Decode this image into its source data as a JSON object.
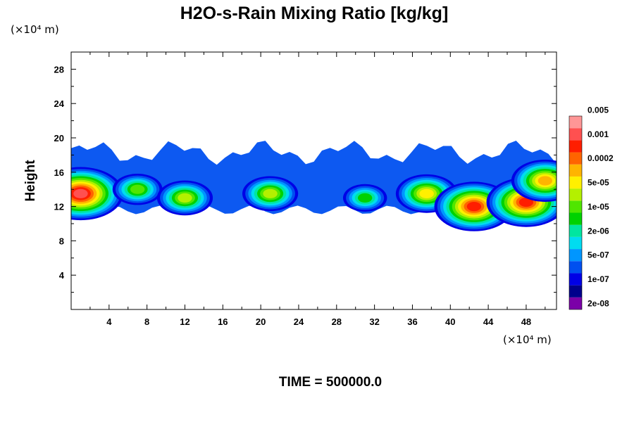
{
  "chart_data": {
    "type": "heatmap",
    "title": "H2O-s-Rain Mixing Ratio [kg/kg]",
    "xlabel": "",
    "ylabel": "Height",
    "x_unit_label": "(×10⁴ m)",
    "y_unit_label": "(×10⁴ m)",
    "xlim": [
      0,
      51.2
    ],
    "ylim": [
      0,
      30
    ],
    "x_ticks": [
      4,
      8,
      12,
      16,
      20,
      24,
      28,
      32,
      36,
      40,
      44,
      48
    ],
    "y_ticks": [
      4,
      8,
      12,
      16,
      20,
      24,
      28
    ],
    "colorbar": {
      "colors": [
        "#7b00a8",
        "#00008c",
        "#0000e6",
        "#0050f0",
        "#0096ff",
        "#00dcf0",
        "#00e6a0",
        "#00d200",
        "#50e600",
        "#b4f000",
        "#fff000",
        "#ffb400",
        "#ff6400",
        "#ff1e00",
        "#ff5050",
        "#ff9696"
      ],
      "labels": [
        "2e-08",
        "1e-07",
        "5e-07",
        "2e-06",
        "1e-05",
        "5e-05",
        "0.0002",
        "0.001",
        "0.005"
      ]
    },
    "field_summary": {
      "layer_bottom": 11,
      "layer_top": 19.5,
      "description_points": [
        {
          "x": 1,
          "y": 13.5,
          "level": 14
        },
        {
          "x": 7,
          "y": 14,
          "level": 8
        },
        {
          "x": 12,
          "y": 13,
          "level": 9
        },
        {
          "x": 21,
          "y": 13.5,
          "level": 9
        },
        {
          "x": 31,
          "y": 13,
          "level": 7
        },
        {
          "x": 37.5,
          "y": 13.5,
          "level": 10
        },
        {
          "x": 42.5,
          "y": 12,
          "level": 13
        },
        {
          "x": 48,
          "y": 12.5,
          "level": 13
        },
        {
          "x": 50,
          "y": 15,
          "level": 11
        }
      ]
    },
    "time_label": "TIME = 500000.0"
  }
}
